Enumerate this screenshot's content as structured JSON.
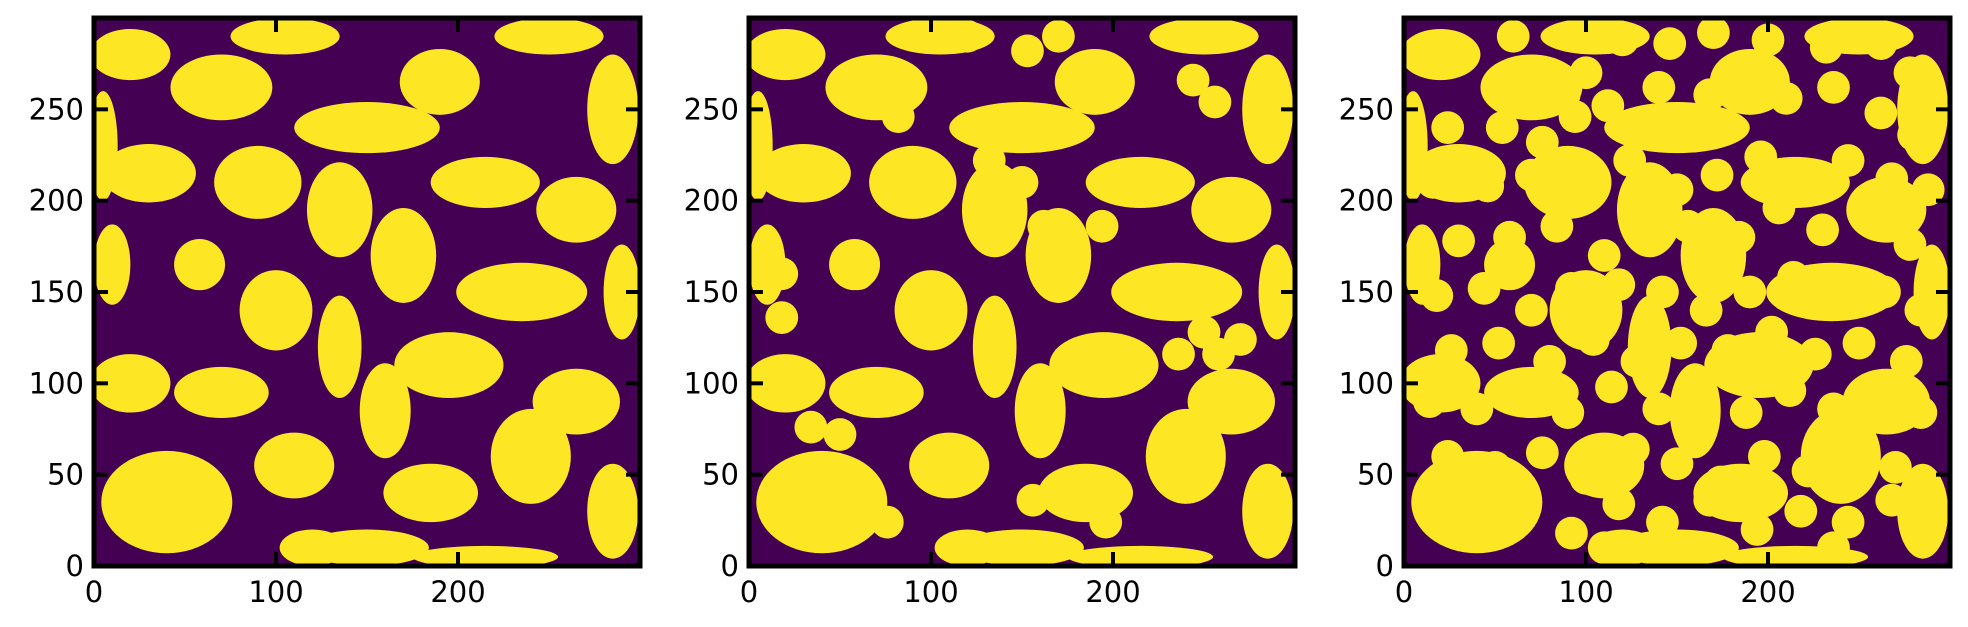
{
  "chart_data": [
    {
      "type": "heatmap",
      "title": "",
      "xlabel": "",
      "ylabel": "",
      "xlim": [
        0,
        300
      ],
      "ylim": [
        0,
        300
      ],
      "xticks": [
        "0",
        "100",
        "200"
      ],
      "yticks": [
        "0",
        "50",
        "100",
        "150",
        "200",
        "250"
      ],
      "xtick_values": [
        0,
        100,
        200
      ],
      "ytick_values": [
        0,
        50,
        100,
        150,
        200,
        250
      ],
      "colors": {
        "low": "#440154",
        "high": "#fde725"
      },
      "binary_field": true,
      "added_disks": [],
      "grid": false
    },
    {
      "type": "heatmap",
      "title": "",
      "xlabel": "",
      "ylabel": "",
      "xlim": [
        0,
        300
      ],
      "ylim": [
        0,
        300
      ],
      "xticks": [
        "0",
        "100",
        "200"
      ],
      "yticks": [
        "0",
        "50",
        "100",
        "150",
        "200",
        "250"
      ],
      "xtick_values": [
        0,
        100,
        200
      ],
      "ytick_values": [
        0,
        50,
        100,
        150,
        200,
        250
      ],
      "colors": {
        "low": "#440154",
        "high": "#fde725"
      },
      "binary_field": true,
      "added_disks": [
        [
          120,
          290
        ],
        [
          153,
          282
        ],
        [
          170,
          290
        ],
        [
          82,
          246
        ],
        [
          244,
          266
        ],
        [
          256,
          254
        ],
        [
          132,
          222
        ],
        [
          150,
          210
        ],
        [
          194,
          186
        ],
        [
          162,
          186
        ],
        [
          18,
          160
        ],
        [
          60,
          160
        ],
        [
          18,
          136
        ],
        [
          250,
          128
        ],
        [
          270,
          124
        ],
        [
          236,
          116
        ],
        [
          258,
          116
        ],
        [
          34,
          76
        ],
        [
          50,
          72
        ],
        [
          76,
          24
        ],
        [
          156,
          36
        ],
        [
          196,
          24
        ]
      ],
      "grid": false
    },
    {
      "type": "heatmap",
      "title": "",
      "xlabel": "",
      "ylabel": "",
      "xlim": [
        0,
        300
      ],
      "ylim": [
        0,
        300
      ],
      "xticks": [
        "0",
        "100",
        "200"
      ],
      "yticks": [
        "0",
        "50",
        "100",
        "150",
        "200",
        "250"
      ],
      "xtick_values": [
        0,
        100,
        200
      ],
      "ytick_values": [
        0,
        50,
        100,
        150,
        200,
        250
      ],
      "colors": {
        "low": "#440154",
        "high": "#fde725"
      },
      "binary_field": true,
      "added_disks": [
        [
          30,
          280
        ],
        [
          60,
          290
        ],
        [
          88,
          258
        ],
        [
          100,
          270
        ],
        [
          120,
          288
        ],
        [
          146,
          286
        ],
        [
          170,
          292
        ],
        [
          200,
          288
        ],
        [
          232,
          284
        ],
        [
          262,
          286
        ],
        [
          278,
          270
        ],
        [
          24,
          240
        ],
        [
          54,
          240
        ],
        [
          76,
          232
        ],
        [
          94,
          246
        ],
        [
          112,
          252
        ],
        [
          140,
          262
        ],
        [
          168,
          258
        ],
        [
          188,
          266
        ],
        [
          210,
          256
        ],
        [
          236,
          262
        ],
        [
          262,
          248
        ],
        [
          280,
          236
        ],
        [
          16,
          210
        ],
        [
          46,
          208
        ],
        [
          70,
          214
        ],
        [
          96,
          206
        ],
        [
          124,
          222
        ],
        [
          150,
          206
        ],
        [
          172,
          214
        ],
        [
          196,
          224
        ],
        [
          220,
          212
        ],
        [
          244,
          222
        ],
        [
          268,
          212
        ],
        [
          288,
          206
        ],
        [
          30,
          178
        ],
        [
          58,
          180
        ],
        [
          84,
          186
        ],
        [
          110,
          170
        ],
        [
          132,
          190
        ],
        [
          156,
          186
        ],
        [
          184,
          180
        ],
        [
          206,
          196
        ],
        [
          230,
          184
        ],
        [
          256,
          190
        ],
        [
          278,
          176
        ],
        [
          18,
          148
        ],
        [
          44,
          152
        ],
        [
          70,
          140
        ],
        [
          92,
          152
        ],
        [
          118,
          154
        ],
        [
          142,
          150
        ],
        [
          166,
          140
        ],
        [
          190,
          150
        ],
        [
          214,
          158
        ],
        [
          240,
          146
        ],
        [
          264,
          150
        ],
        [
          284,
          140
        ],
        [
          26,
          118
        ],
        [
          52,
          122
        ],
        [
          80,
          112
        ],
        [
          104,
          124
        ],
        [
          128,
          112
        ],
        [
          152,
          122
        ],
        [
          178,
          118
        ],
        [
          202,
          128
        ],
        [
          226,
          116
        ],
        [
          250,
          122
        ],
        [
          276,
          112
        ],
        [
          14,
          90
        ],
        [
          40,
          86
        ],
        [
          64,
          96
        ],
        [
          90,
          84
        ],
        [
          114,
          98
        ],
        [
          140,
          86
        ],
        [
          164,
          94
        ],
        [
          188,
          84
        ],
        [
          212,
          96
        ],
        [
          236,
          86
        ],
        [
          260,
          96
        ],
        [
          284,
          84
        ],
        [
          24,
          60
        ],
        [
          50,
          54
        ],
        [
          76,
          62
        ],
        [
          100,
          48
        ],
        [
          126,
          64
        ],
        [
          150,
          56
        ],
        [
          174,
          46
        ],
        [
          198,
          60
        ],
        [
          222,
          52
        ],
        [
          246,
          62
        ],
        [
          270,
          54
        ],
        [
          14,
          30
        ],
        [
          40,
          24
        ],
        [
          66,
          34
        ],
        [
          92,
          18
        ],
        [
          118,
          34
        ],
        [
          142,
          24
        ],
        [
          168,
          36
        ],
        [
          194,
          20
        ],
        [
          218,
          30
        ],
        [
          244,
          24
        ],
        [
          268,
          36
        ],
        [
          288,
          18
        ],
        [
          110,
          10
        ],
        [
          150,
          8
        ],
        [
          236,
          10
        ]
      ],
      "grid": false
    }
  ]
}
